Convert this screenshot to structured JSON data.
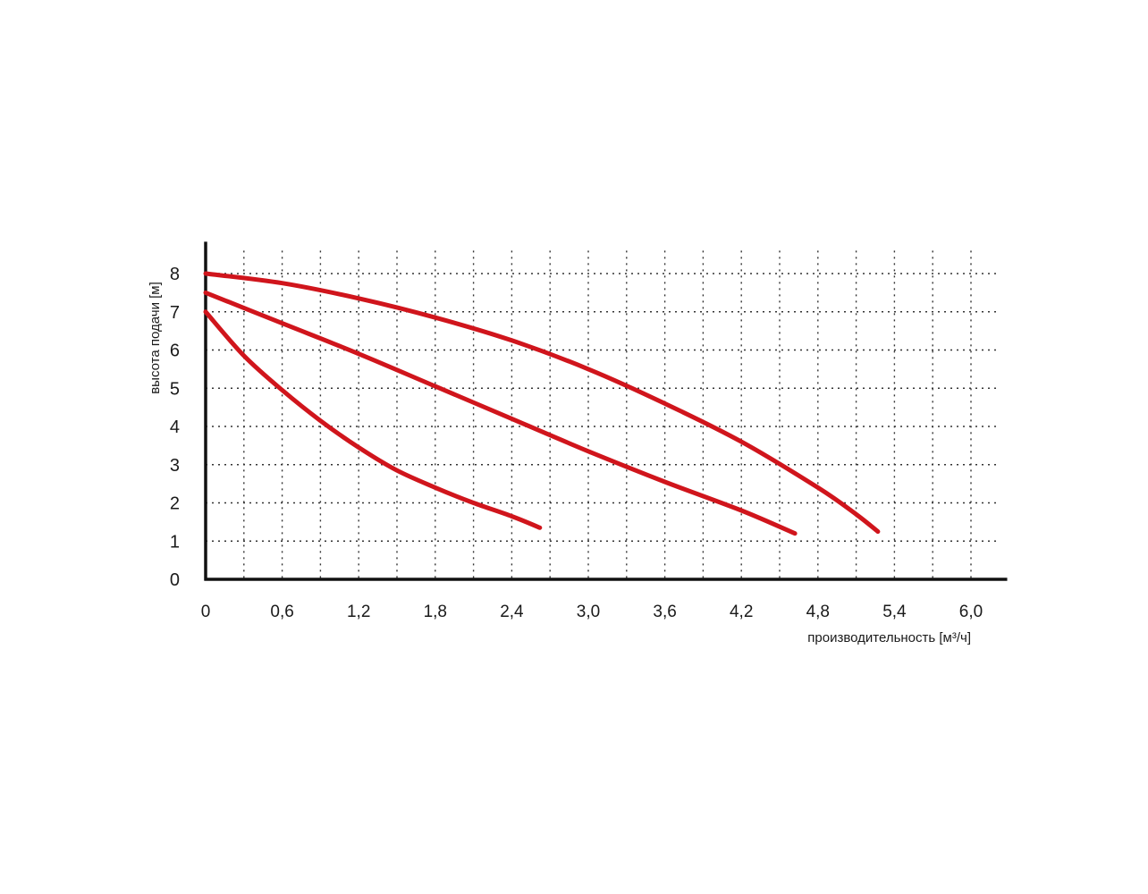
{
  "chart_data": {
    "type": "line",
    "xlabel": "производительность [м³/ч]",
    "ylabel": "высота подачи [м]",
    "x_ticks": [
      "0",
      "0,6",
      "1,2",
      "1,8",
      "2,4",
      "3,0",
      "3,6",
      "4,2",
      "4,8",
      "5,4",
      "6,0"
    ],
    "y_ticks": [
      "0",
      "1",
      "2",
      "3",
      "4",
      "5",
      "6",
      "7",
      "8"
    ],
    "xlim": [
      0,
      6.2
    ],
    "ylim": [
      0,
      8.6
    ],
    "grid": true,
    "grid_style": "dotted",
    "line_color": "#d0151c",
    "series": [
      {
        "x": [
          0,
          0.3,
          0.6,
          0.9,
          1.2,
          1.5,
          1.8,
          2.1,
          2.4,
          2.62
        ],
        "y": [
          7.0,
          5.85,
          4.95,
          4.15,
          3.45,
          2.85,
          2.4,
          2.0,
          1.65,
          1.35
        ]
      },
      {
        "x": [
          0,
          0.6,
          1.2,
          1.8,
          2.4,
          3.0,
          3.6,
          4.2,
          4.62
        ],
        "y": [
          7.5,
          6.7,
          5.9,
          5.05,
          4.2,
          3.35,
          2.55,
          1.8,
          1.2
        ]
      },
      {
        "x": [
          0,
          0.6,
          1.2,
          1.8,
          2.4,
          3.0,
          3.6,
          4.2,
          4.8,
          5.1,
          5.27
        ],
        "y": [
          8.0,
          7.75,
          7.35,
          6.85,
          6.25,
          5.5,
          4.6,
          3.6,
          2.4,
          1.7,
          1.25
        ]
      }
    ]
  }
}
